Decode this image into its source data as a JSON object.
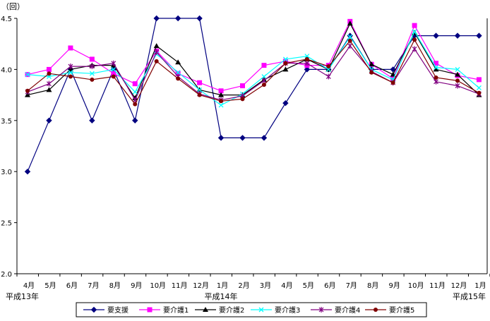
{
  "chart_data": {
    "type": "line",
    "title": "",
    "ylabel": "（回）",
    "xlabel": "",
    "ylim": [
      2.0,
      4.5
    ],
    "yticks": [
      "2.0",
      "2.5",
      "3.0",
      "3.5",
      "4.0",
      "4.5"
    ],
    "categories": [
      "4月",
      "5月",
      "6月",
      "7月",
      "8月",
      "9月",
      "10月",
      "11月",
      "12月",
      "1月",
      "2月",
      "3月",
      "4月",
      "5月",
      "6月",
      "7月",
      "8月",
      "9月",
      "10月",
      "11月",
      "12月",
      "1月"
    ],
    "year_labels": [
      {
        "label": "平成13年",
        "index": 0
      },
      {
        "label": "平成14年",
        "index": 9
      },
      {
        "label": "平成15年",
        "index": 21
      }
    ],
    "grid": false,
    "legend_position": "bottom",
    "series": [
      {
        "name": "要支援",
        "color": "#000080",
        "marker": "diamond",
        "values": [
          3.0,
          3.5,
          4.0,
          3.5,
          4.0,
          3.5,
          4.5,
          4.5,
          4.5,
          3.33,
          3.33,
          3.33,
          3.67,
          4.0,
          4.0,
          4.33,
          4.0,
          4.0,
          4.33,
          4.33,
          4.33,
          4.33
        ]
      },
      {
        "name": "要介護1",
        "color": "#ff00ff",
        "marker": "square",
        "values": [
          3.95,
          4.0,
          4.21,
          4.1,
          3.96,
          3.86,
          4.18,
          3.96,
          3.87,
          3.79,
          3.84,
          4.04,
          4.08,
          4.04,
          4.04,
          4.47,
          4.05,
          3.91,
          4.43,
          4.06,
          3.94,
          3.9
        ]
      },
      {
        "name": "要介護2",
        "color": "#000000",
        "marker": "triangle",
        "values": [
          3.75,
          3.8,
          4.0,
          4.04,
          4.04,
          3.72,
          4.23,
          4.07,
          3.8,
          3.75,
          3.75,
          3.9,
          4.0,
          4.1,
          4.0,
          4.45,
          4.05,
          3.95,
          4.36,
          4.0,
          3.95,
          3.75
        ]
      },
      {
        "name": "要介護3",
        "color": "#00ffff",
        "marker": "x",
        "values": [
          3.95,
          3.93,
          3.97,
          3.96,
          4.0,
          3.78,
          4.15,
          3.97,
          3.8,
          3.65,
          3.76,
          3.93,
          4.1,
          4.13,
          4.0,
          4.32,
          4.0,
          3.9,
          4.37,
          4.02,
          4.0,
          3.82
        ]
      },
      {
        "name": "要介護4",
        "color": "#800080",
        "marker": "star",
        "values": [
          3.78,
          3.86,
          4.03,
          4.03,
          4.06,
          3.7,
          4.17,
          3.93,
          3.76,
          3.7,
          3.74,
          3.89,
          4.06,
          4.06,
          3.93,
          4.23,
          3.98,
          3.87,
          4.2,
          3.88,
          3.84,
          3.76
        ]
      },
      {
        "name": "要介護5",
        "color": "#800000",
        "marker": "circle",
        "values": [
          3.79,
          3.96,
          3.93,
          3.9,
          3.93,
          3.66,
          4.08,
          3.91,
          3.75,
          3.69,
          3.71,
          3.85,
          4.06,
          4.1,
          4.03,
          4.28,
          3.97,
          3.87,
          4.29,
          3.92,
          3.89,
          3.77
        ]
      }
    ]
  }
}
